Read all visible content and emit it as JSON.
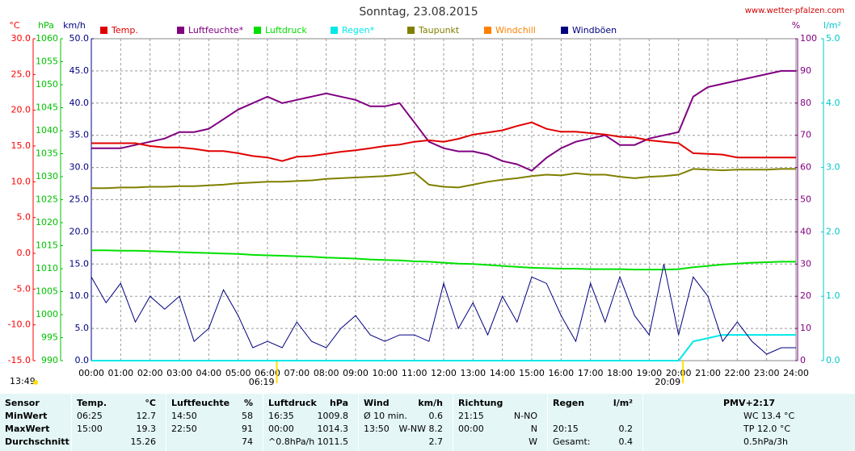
{
  "chart_data": {
    "type": "line",
    "title": "Sonntag, 23.08.2015",
    "credit": "www.wetter-pfalzen.com",
    "updated": "13:49",
    "grid": true,
    "axes": [
      {
        "unit": "°C",
        "color": "#ff0000",
        "side": "left",
        "lim": [
          -15,
          30
        ],
        "ticks": [
          {
            "value": -15,
            "label": "-15.0"
          },
          {
            "value": -10,
            "label": "-10.0"
          },
          {
            "value": -5,
            "label": "-5.0"
          },
          {
            "value": 0,
            "label": "0.0"
          },
          {
            "value": 5,
            "label": "5.0"
          },
          {
            "value": 10,
            "label": "10.0"
          },
          {
            "value": 15,
            "label": "15.0"
          },
          {
            "value": 20,
            "label": "20.0"
          },
          {
            "value": 25,
            "label": "25.0"
          },
          {
            "value": 30,
            "label": "30.0"
          }
        ]
      },
      {
        "unit": "hPa",
        "color": "#00c000",
        "side": "left",
        "lim": [
          990,
          1060
        ],
        "ticks": [
          990,
          995,
          1000,
          1005,
          1010,
          1015,
          1020,
          1025,
          1030,
          1035,
          1040,
          1045,
          1050,
          1055,
          1060
        ]
      },
      {
        "unit": "km/h",
        "color": "#000080",
        "side": "left",
        "lim": [
          0,
          50
        ],
        "ticks": [
          {
            "value": 0,
            "label": "0.0"
          },
          {
            "value": 5,
            "label": "5.0"
          },
          {
            "value": 10,
            "label": "10.0"
          },
          {
            "value": 15,
            "label": "15.0"
          },
          {
            "value": 20,
            "label": "20.0"
          },
          {
            "value": 25,
            "label": "25.0"
          },
          {
            "value": 30,
            "label": "30.0"
          },
          {
            "value": 35,
            "label": "35.0"
          },
          {
            "value": 40,
            "label": "40.0"
          },
          {
            "value": 45,
            "label": "45.0"
          },
          {
            "value": 50,
            "label": "50.0"
          }
        ]
      },
      {
        "unit": "%",
        "color": "#800080",
        "side": "right",
        "lim": [
          0,
          100
        ],
        "ticks": [
          0,
          10,
          20,
          30,
          40,
          50,
          60,
          70,
          80,
          90,
          100
        ]
      },
      {
        "unit": "l/m²",
        "color": "#00c8c8",
        "side": "right",
        "lim": [
          0,
          5
        ],
        "ticks": [
          {
            "value": 0,
            "label": "0.0"
          },
          {
            "value": 1,
            "label": "1.0"
          },
          {
            "value": 2,
            "label": "2.0"
          },
          {
            "value": 3,
            "label": "3.0"
          },
          {
            "value": 4,
            "label": "4.0"
          },
          {
            "value": 5,
            "label": "5.0"
          }
        ]
      }
    ],
    "xlim": [
      0,
      24
    ],
    "xticks": [
      {
        "value": 0,
        "label": "00:00"
      },
      {
        "value": 1,
        "label": "01:00"
      },
      {
        "value": 2,
        "label": "02:00"
      },
      {
        "value": 3,
        "label": "03:00"
      },
      {
        "value": 4,
        "label": "04:00"
      },
      {
        "value": 5,
        "label": "05:00"
      },
      {
        "value": 6,
        "label": "06:00"
      },
      {
        "value": 7,
        "label": "07:00"
      },
      {
        "value": 8,
        "label": "08:00"
      },
      {
        "value": 9,
        "label": "09:00"
      },
      {
        "value": 10,
        "label": "10:00"
      },
      {
        "value": 11,
        "label": "11:00"
      },
      {
        "value": 12,
        "label": "12:00"
      },
      {
        "value": 13,
        "label": "13:00"
      },
      {
        "value": 14,
        "label": "14:00"
      },
      {
        "value": 15,
        "label": "15:00"
      },
      {
        "value": 16,
        "label": "16:00"
      },
      {
        "value": 17,
        "label": "17:00"
      },
      {
        "value": 18,
        "label": "18:00"
      },
      {
        "value": 19,
        "label": "19:00"
      },
      {
        "value": 20,
        "label": "20:00"
      },
      {
        "value": 21,
        "label": "21:00"
      },
      {
        "value": 22,
        "label": "22:00"
      },
      {
        "value": 23,
        "label": "23:00"
      },
      {
        "value": 24,
        "label": "24:00"
      }
    ],
    "x": [
      0,
      0.5,
      1,
      1.5,
      2,
      2.5,
      3,
      3.5,
      4,
      4.5,
      5,
      5.5,
      6,
      6.5,
      7,
      7.5,
      8,
      8.5,
      9,
      9.5,
      10,
      10.5,
      11,
      11.5,
      12,
      12.5,
      13,
      13.5,
      14,
      14.5,
      15,
      15.5,
      16,
      16.5,
      17,
      17.5,
      18,
      18.5,
      19,
      19.5,
      20,
      20.5,
      21,
      21.5,
      22,
      22.5,
      23,
      23.5,
      24
    ],
    "series": [
      {
        "name": "Temp.",
        "color": "#e00000",
        "axis": 0,
        "values": [
          15.4,
          15.4,
          15.4,
          15.4,
          15.0,
          14.8,
          14.8,
          14.6,
          14.3,
          14.3,
          14.0,
          13.6,
          13.4,
          12.9,
          13.5,
          13.6,
          13.9,
          14.2,
          14.4,
          14.7,
          15.0,
          15.2,
          15.6,
          15.8,
          15.6,
          16.0,
          16.6,
          16.9,
          17.2,
          17.8,
          18.3,
          17.4,
          17.0,
          17.0,
          16.8,
          16.6,
          16.3,
          16.2,
          15.8,
          15.6,
          15.4,
          14.0,
          13.9,
          13.8,
          13.4,
          13.4,
          13.4,
          13.4,
          13.4
        ]
      },
      {
        "name": "Luftfeuchte*",
        "color": "#800080",
        "axis": 3,
        "values": [
          66,
          66,
          66,
          67,
          68,
          69,
          71,
          71,
          72,
          75,
          78,
          80,
          82,
          80,
          81,
          82,
          83,
          82,
          81,
          79,
          79,
          80,
          74,
          68,
          66,
          65,
          65,
          64,
          62,
          61,
          59,
          63,
          66,
          68,
          69,
          70,
          67,
          67,
          69,
          70,
          71,
          82,
          85,
          86,
          87,
          88,
          89,
          90,
          90
        ]
      },
      {
        "name": "Luftdruck",
        "color": "#00e000",
        "axis": 1,
        "values": [
          1014.0,
          1014.0,
          1013.9,
          1013.9,
          1013.8,
          1013.7,
          1013.6,
          1013.5,
          1013.4,
          1013.3,
          1013.2,
          1013.0,
          1012.9,
          1012.8,
          1012.7,
          1012.6,
          1012.4,
          1012.3,
          1012.2,
          1012.0,
          1011.9,
          1011.8,
          1011.6,
          1011.5,
          1011.3,
          1011.1,
          1011.0,
          1010.8,
          1010.6,
          1010.4,
          1010.2,
          1010.1,
          1010.0,
          1010.0,
          1009.9,
          1009.9,
          1009.9,
          1009.8,
          1009.8,
          1009.8,
          1009.9,
          1010.3,
          1010.6,
          1010.9,
          1011.1,
          1011.3,
          1011.4,
          1011.5,
          1011.5
        ]
      },
      {
        "name": "Regen*",
        "color": "#00e8e8",
        "axis": 4,
        "values": [
          0,
          0,
          0,
          0,
          0,
          0,
          0,
          0,
          0,
          0,
          0,
          0,
          0,
          0,
          0,
          0,
          0,
          0,
          0,
          0,
          0,
          0,
          0,
          0,
          0,
          0,
          0,
          0,
          0,
          0,
          0,
          0,
          0,
          0,
          0,
          0,
          0,
          0,
          0,
          0,
          0,
          0.3,
          0.35,
          0.4,
          0.4,
          0.4,
          0.4,
          0.4,
          0.4
        ]
      },
      {
        "name": "Taupunkt",
        "color": "#808000",
        "axis": 0,
        "values": [
          9.1,
          9.1,
          9.2,
          9.2,
          9.3,
          9.3,
          9.4,
          9.4,
          9.5,
          9.6,
          9.8,
          9.9,
          10.0,
          10.0,
          10.1,
          10.2,
          10.4,
          10.5,
          10.6,
          10.7,
          10.8,
          11.0,
          11.3,
          9.6,
          9.3,
          9.2,
          9.6,
          10.0,
          10.3,
          10.5,
          10.8,
          11.0,
          10.9,
          11.2,
          11.0,
          11.0,
          10.7,
          10.5,
          10.7,
          10.8,
          11.0,
          11.8,
          11.7,
          11.6,
          11.7,
          11.7,
          11.7,
          11.8,
          11.8
        ]
      },
      {
        "name": "Windchill",
        "color": "#ff8000",
        "axis": 0
      },
      {
        "name": "Windböen",
        "color": "#000080",
        "axis": 2,
        "values": [
          13,
          9,
          12,
          6,
          10,
          8,
          10,
          3,
          5,
          11,
          7,
          2,
          3,
          2,
          6,
          3,
          2,
          5,
          7,
          4,
          3,
          4,
          4,
          3,
          12,
          5,
          9,
          4,
          10,
          6,
          13,
          12,
          7,
          3,
          12,
          6,
          13,
          7,
          4,
          15,
          4,
          13,
          10,
          3,
          6,
          3,
          1,
          2,
          2
        ]
      }
    ],
    "sun_markers": [
      {
        "time": 6.3167,
        "label": "06:19"
      },
      {
        "time": 20.15,
        "label": "20:09"
      }
    ]
  },
  "table": {
    "columns": [
      {
        "header": {
          "left": "Sensor"
        },
        "rows": [
          {
            "left": "MinWert"
          },
          {
            "left": "MaxWert"
          },
          {
            "left": "Durchschnitt"
          }
        ]
      },
      {
        "header": {
          "left": "Temp.",
          "right": "°C"
        },
        "rows": [
          {
            "left": "06:25",
            "right": "12.7"
          },
          {
            "left": "15:00",
            "right": "19.3"
          },
          {
            "right": "15.26"
          }
        ]
      },
      {
        "header": {
          "left": "Luftfeuchte",
          "right": "%"
        },
        "rows": [
          {
            "left": "14:50",
            "right": "58"
          },
          {
            "left": "22:50",
            "right": "91"
          },
          {
            "right": "74"
          }
        ]
      },
      {
        "header": {
          "left": "Luftdruck",
          "right": "hPa"
        },
        "rows": [
          {
            "left": "16:35",
            "right": "1009.8"
          },
          {
            "left": "00:00",
            "right": "1014.3"
          },
          {
            "left": "^0.8hPa/h",
            "right": "1011.5"
          }
        ]
      },
      {
        "header": {
          "left": "Wind",
          "right": "km/h"
        },
        "rows": [
          {
            "left": "Ø 10 min.",
            "right": "0.6"
          },
          {
            "left": "13:50",
            "right": "W-NW 8.2"
          },
          {
            "right": "2.7"
          }
        ]
      },
      {
        "header": {
          "left": "Richtung"
        },
        "rows": [
          {
            "left": "21:15",
            "right": "N-NO"
          },
          {
            "left": "00:00",
            "right": "N"
          },
          {
            "right": "W"
          }
        ]
      },
      {
        "header": {
          "left": "Regen",
          "right": "l/m²"
        },
        "rows": [
          {},
          {
            "left": "20:15",
            "right": "0.2"
          },
          {
            "left": "Gesamt:",
            "right": "0.4"
          }
        ]
      },
      {
        "header": {
          "center": "PMV+2:17"
        },
        "rows": [
          {
            "left": "WC 13.4 °C"
          },
          {
            "left": "TP 12.0 °C"
          },
          {
            "left": "0.5hPa/3h"
          }
        ]
      }
    ]
  }
}
